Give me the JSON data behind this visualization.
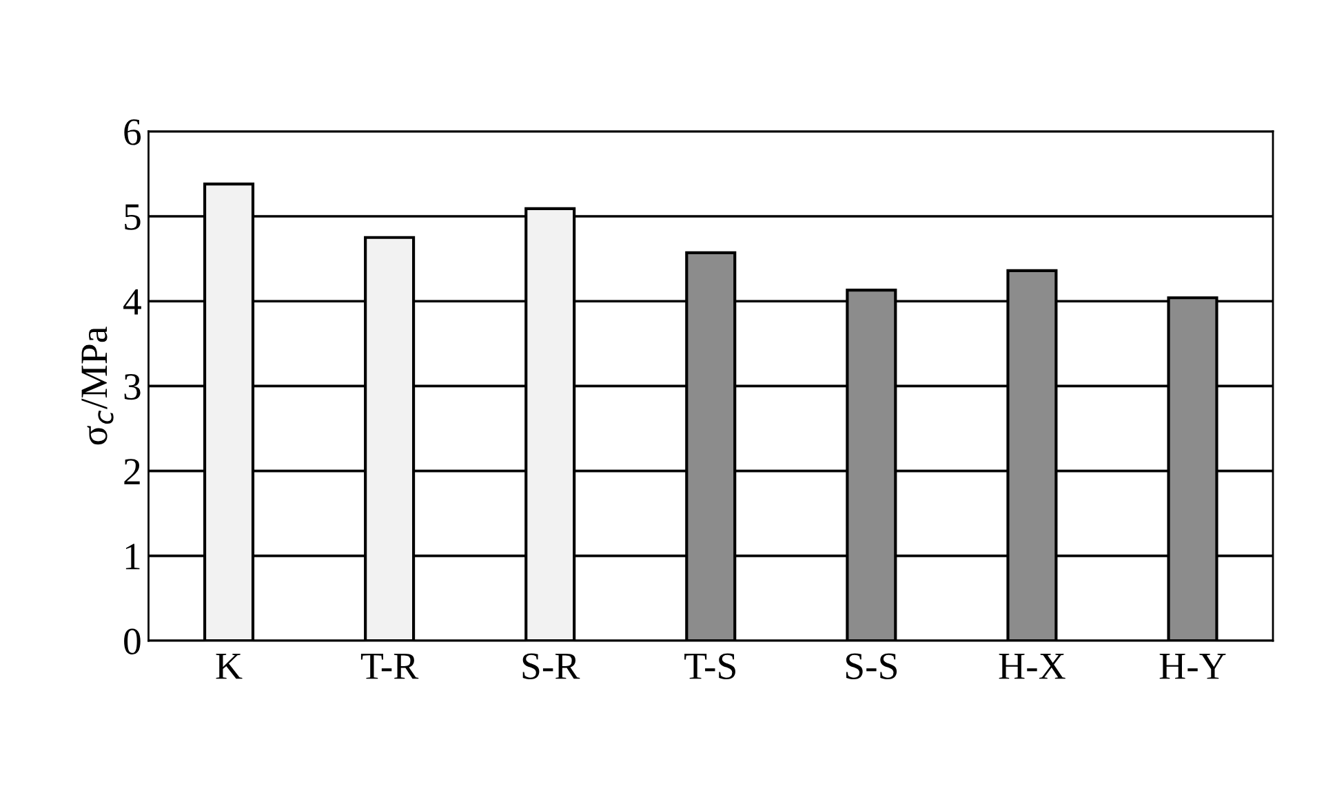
{
  "chart_data": {
    "type": "bar",
    "ylabel": "σ$_{c}$/MPa",
    "categories": [
      "K",
      "T-R",
      "S-R",
      "T-S",
      "S-S",
      "H-X",
      "H-Y"
    ],
    "values": [
      5.38,
      4.75,
      5.09,
      4.57,
      4.13,
      4.36,
      4.04
    ],
    "colors": [
      "#f2f2f2",
      "#f2f2f2",
      "#f2f2f2",
      "#8c8c8c",
      "#8c8c8c",
      "#8c8c8c",
      "#8c8c8c"
    ],
    "ylim": [
      0,
      6
    ],
    "yticks": [
      0,
      1,
      2,
      3,
      4,
      5,
      6
    ],
    "grid": "y"
  }
}
